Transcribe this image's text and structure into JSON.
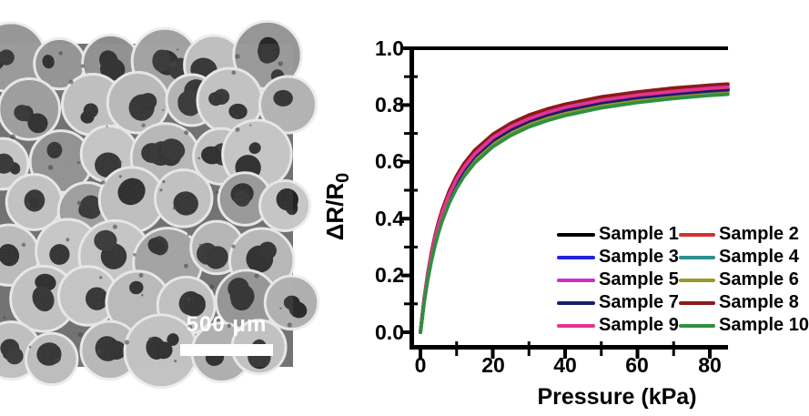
{
  "sem_panel": {
    "description": "SEM micrograph of porous elastomer foam with spherical cells and dark circular pores",
    "scale_bar_label": "500 μm"
  },
  "chart_data": {
    "type": "line",
    "title": "",
    "xlabel": "Pressure (kPa)",
    "ylabel": "ΔR/R0",
    "ylabel_main": "ΔR/R",
    "ylabel_sub": "0",
    "xlim": [
      -3,
      85
    ],
    "ylim": [
      -0.05,
      1.0
    ],
    "x_ticks": [
      "0",
      "20",
      "40",
      "60",
      "80"
    ],
    "y_ticks": [
      "1.0",
      "0.8",
      "0.6",
      "0.4",
      "0.2",
      "0.0"
    ],
    "grid": false,
    "legend_position": "lower right, two columns, right column clipped at image edge",
    "x": [
      0,
      1,
      2,
      3,
      4,
      5,
      6,
      8,
      10,
      12,
      15,
      20,
      25,
      30,
      35,
      40,
      50,
      60,
      70,
      80,
      85
    ],
    "series": [
      {
        "name": "Sample 1",
        "color": "#000000",
        "values": [
          0,
          0.108,
          0.194,
          0.264,
          0.321,
          0.37,
          0.411,
          0.478,
          0.53,
          0.571,
          0.619,
          0.675,
          0.715,
          0.744,
          0.766,
          0.783,
          0.809,
          0.827,
          0.841,
          0.851,
          0.856
        ]
      },
      {
        "name": "Sample 2",
        "color": "#d43030",
        "values": [
          0,
          0.114,
          0.203,
          0.275,
          0.335,
          0.384,
          0.426,
          0.494,
          0.546,
          0.588,
          0.636,
          0.692,
          0.731,
          0.76,
          0.782,
          0.799,
          0.825,
          0.843,
          0.856,
          0.866,
          0.87
        ]
      },
      {
        "name": "Sample 3",
        "color": "#2222e0",
        "values": [
          0,
          0.108,
          0.194,
          0.263,
          0.321,
          0.369,
          0.41,
          0.477,
          0.528,
          0.569,
          0.617,
          0.674,
          0.713,
          0.742,
          0.764,
          0.782,
          0.807,
          0.825,
          0.839,
          0.849,
          0.854
        ]
      },
      {
        "name": "Sample 4",
        "color": "#2f9090",
        "values": [
          0,
          0.105,
          0.189,
          0.257,
          0.314,
          0.362,
          0.403,
          0.469,
          0.52,
          0.561,
          0.609,
          0.666,
          0.706,
          0.735,
          0.757,
          0.775,
          0.801,
          0.819,
          0.833,
          0.844,
          0.848
        ]
      },
      {
        "name": "Sample 5",
        "color": "#cc2fcc",
        "values": [
          0,
          0.11,
          0.197,
          0.267,
          0.325,
          0.374,
          0.415,
          0.482,
          0.534,
          0.575,
          0.623,
          0.679,
          0.718,
          0.747,
          0.769,
          0.787,
          0.812,
          0.83,
          0.844,
          0.854,
          0.858
        ]
      },
      {
        "name": "Sample 6",
        "color": "#99992a",
        "values": [
          0,
          0.104,
          0.187,
          0.254,
          0.311,
          0.358,
          0.399,
          0.465,
          0.516,
          0.557,
          0.605,
          0.662,
          0.702,
          0.731,
          0.754,
          0.772,
          0.798,
          0.817,
          0.83,
          0.841,
          0.845
        ]
      },
      {
        "name": "Sample 7",
        "color": "#1b1b70",
        "values": [
          0,
          0.109,
          0.195,
          0.264,
          0.322,
          0.371,
          0.412,
          0.478,
          0.53,
          0.571,
          0.619,
          0.675,
          0.714,
          0.743,
          0.765,
          0.782,
          0.808,
          0.826,
          0.839,
          0.85,
          0.854
        ]
      },
      {
        "name": "Sample 8",
        "color": "#8b1a1a",
        "values": [
          0,
          0.116,
          0.206,
          0.279,
          0.339,
          0.389,
          0.431,
          0.499,
          0.551,
          0.593,
          0.641,
          0.697,
          0.736,
          0.765,
          0.786,
          0.803,
          0.829,
          0.846,
          0.86,
          0.87,
          0.874
        ]
      },
      {
        "name": "Sample 9",
        "color": "#e23593",
        "values": [
          0,
          0.112,
          0.2,
          0.271,
          0.329,
          0.378,
          0.42,
          0.487,
          0.539,
          0.58,
          0.628,
          0.685,
          0.724,
          0.752,
          0.774,
          0.792,
          0.817,
          0.835,
          0.848,
          0.859,
          0.863
        ]
      },
      {
        "name": "Sample 10",
        "color": "#2f9040",
        "values": [
          0,
          0.101,
          0.182,
          0.248,
          0.303,
          0.35,
          0.391,
          0.456,
          0.507,
          0.548,
          0.596,
          0.653,
          0.693,
          0.723,
          0.745,
          0.763,
          0.79,
          0.809,
          0.823,
          0.834,
          0.838
        ]
      }
    ]
  }
}
